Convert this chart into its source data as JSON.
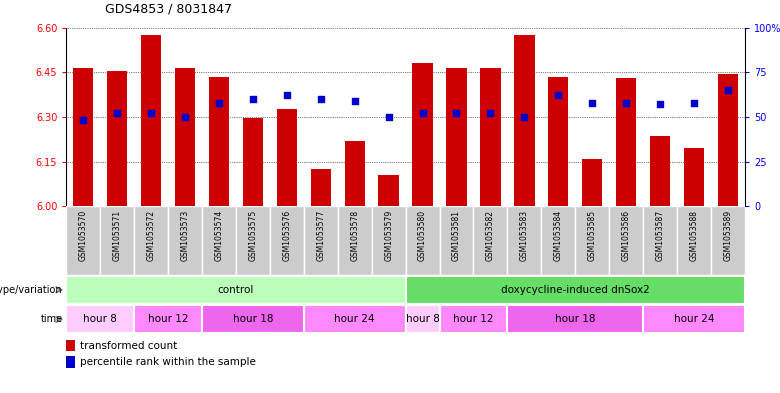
{
  "title": "GDS4853 / 8031847",
  "samples": [
    "GSM1053570",
    "GSM1053571",
    "GSM1053572",
    "GSM1053573",
    "GSM1053574",
    "GSM1053575",
    "GSM1053576",
    "GSM1053577",
    "GSM1053578",
    "GSM1053579",
    "GSM1053580",
    "GSM1053581",
    "GSM1053582",
    "GSM1053583",
    "GSM1053584",
    "GSM1053585",
    "GSM1053586",
    "GSM1053587",
    "GSM1053588",
    "GSM1053589"
  ],
  "bar_values": [
    6.465,
    6.455,
    6.575,
    6.465,
    6.435,
    6.295,
    6.325,
    6.125,
    6.22,
    6.105,
    6.48,
    6.465,
    6.465,
    6.575,
    6.435,
    6.16,
    6.43,
    6.235,
    6.195,
    6.445
  ],
  "percentile_values": [
    48,
    52,
    52,
    50,
    58,
    60,
    62,
    60,
    59,
    50,
    52,
    52,
    52,
    50,
    62,
    58,
    58,
    57,
    58,
    65
  ],
  "ylim_left": [
    6.0,
    6.6
  ],
  "ylim_right": [
    0,
    100
  ],
  "yticks_left": [
    6.0,
    6.15,
    6.3,
    6.45,
    6.6
  ],
  "yticks_right": [
    0,
    25,
    50,
    75,
    100
  ],
  "bar_color": "#CC0000",
  "dot_color": "#0000CC",
  "sample_box_color": "#CCCCCC",
  "genotype_groups": [
    {
      "label": "control",
      "start": 0,
      "end": 10,
      "color": "#BBFFBB"
    },
    {
      "label": "doxycycline-induced dnSox2",
      "start": 10,
      "end": 20,
      "color": "#66DD66"
    }
  ],
  "time_groups": [
    {
      "label": "hour 8",
      "start": 0,
      "end": 2,
      "color": "#FFCCFF"
    },
    {
      "label": "hour 12",
      "start": 2,
      "end": 4,
      "color": "#FF88FF"
    },
    {
      "label": "hour 18",
      "start": 4,
      "end": 7,
      "color": "#EE66EE"
    },
    {
      "label": "hour 24",
      "start": 7,
      "end": 10,
      "color": "#FF88FF"
    },
    {
      "label": "hour 8",
      "start": 10,
      "end": 11,
      "color": "#FFCCFF"
    },
    {
      "label": "hour 12",
      "start": 11,
      "end": 13,
      "color": "#FF88FF"
    },
    {
      "label": "hour 18",
      "start": 13,
      "end": 17,
      "color": "#EE66EE"
    },
    {
      "label": "hour 24",
      "start": 17,
      "end": 20,
      "color": "#FF88FF"
    }
  ]
}
